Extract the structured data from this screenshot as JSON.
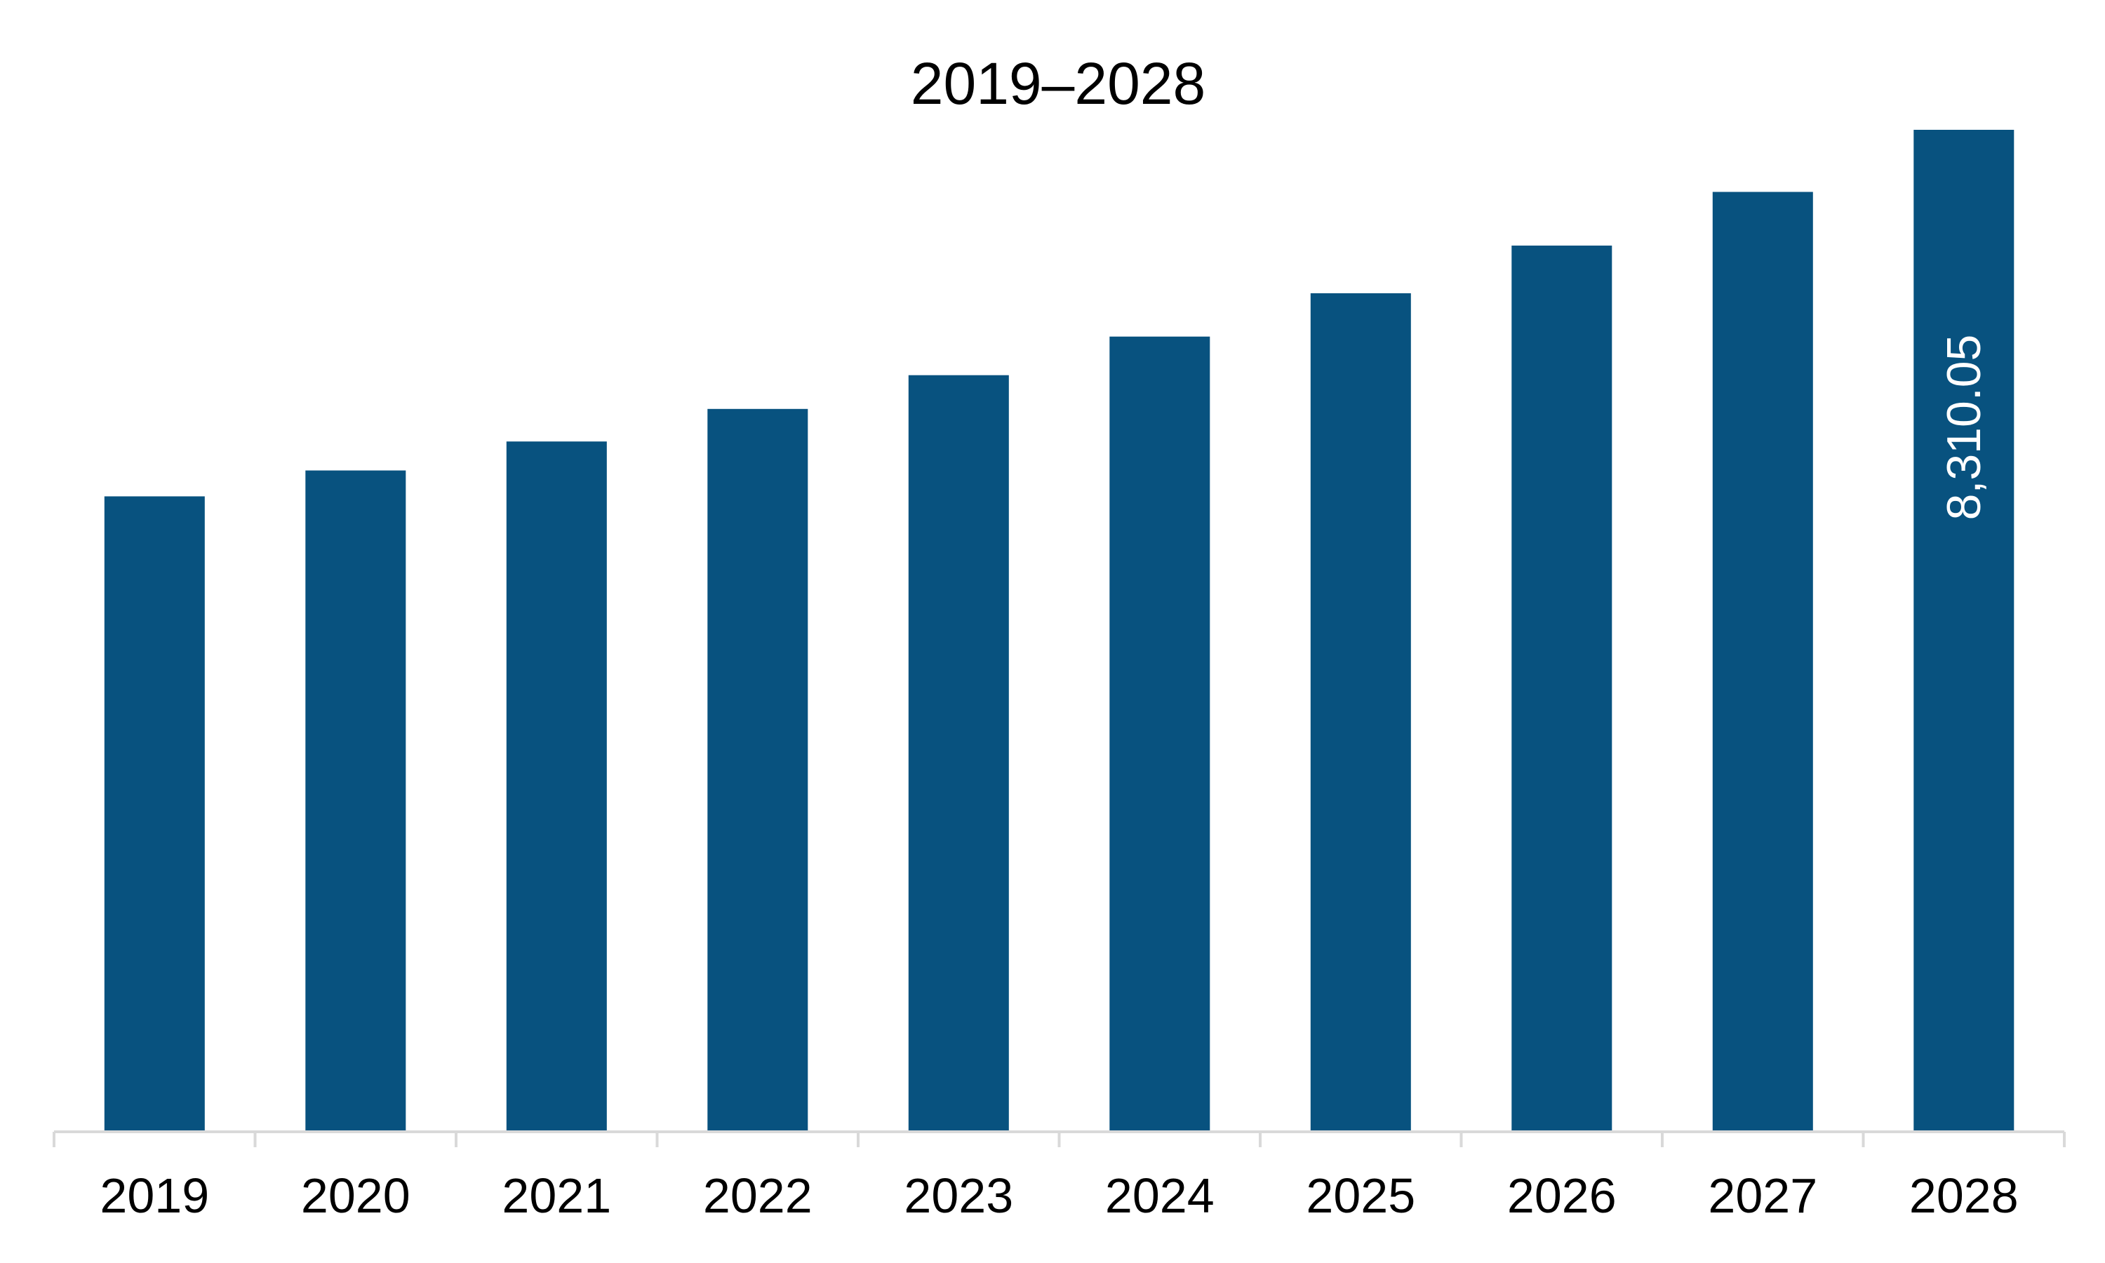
{
  "chart_data": {
    "type": "bar",
    "title": "2019–2028",
    "categories": [
      "2019",
      "2020",
      "2021",
      "2022",
      "2023",
      "2024",
      "2025",
      "2026",
      "2027",
      "2028"
    ],
    "values": [
      5270,
      5485,
      5725,
      5995,
      6275,
      6595,
      6955,
      7350,
      7795,
      8310.05
    ],
    "data_labels": [
      "",
      "",
      "",
      "",
      "",
      "",
      "",
      "",
      "",
      "8,310.05"
    ],
    "ylim": [
      0,
      8310.05
    ],
    "grid": false,
    "legend": "none",
    "bar_color": "#08527f",
    "axis_color": "#d9d9d9"
  }
}
